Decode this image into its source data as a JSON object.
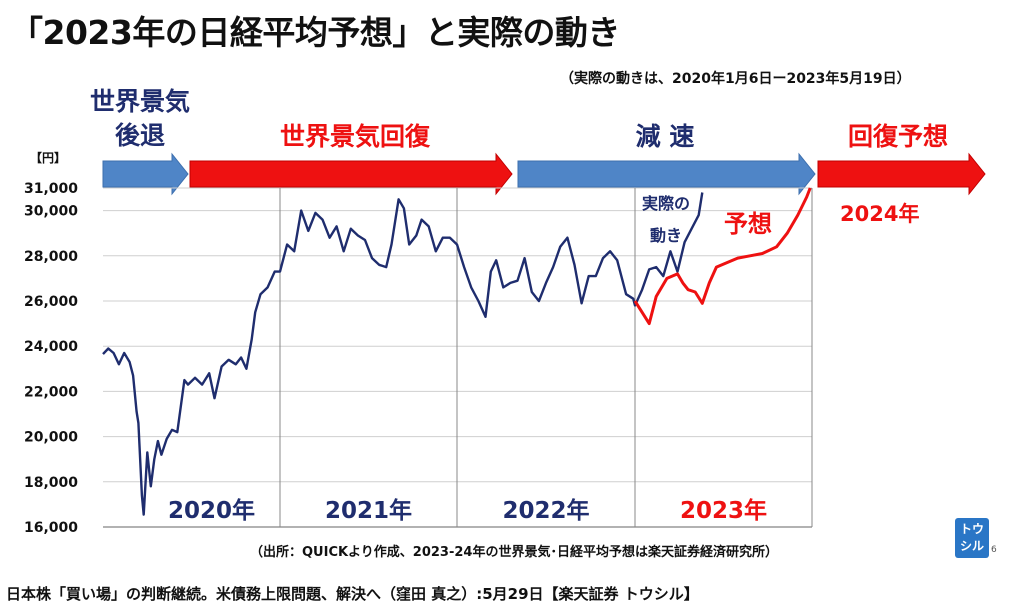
{
  "title": "「2023年の日経平均予想」と実際の動き",
  "period_note": "（実際の動きは、2020年1月6日ー2023年5月19日）",
  "footer": "日本株「買い場」の判断継続。米債務上限問題、解決へ（窪田 真之）:5月29日【楽天証券 トウシル】",
  "logo_text": "トウシル",
  "page_number": "6",
  "colors": {
    "actual": "#1f2d6e",
    "forecast": "#ee1111",
    "phase_blue": "#4f85c7",
    "phase_red": "#ee1111",
    "text": "#111111"
  },
  "chart_data": {
    "type": "line",
    "y_unit": "【円】",
    "ylim": [
      16000,
      31000
    ],
    "y_ticks": [
      "16,000",
      "18,000",
      "20,000",
      "22,000",
      "24,000",
      "26,000",
      "28,000",
      "30,000",
      "31,000"
    ],
    "y_tick_values": [
      16000,
      18000,
      20000,
      22000,
      24000,
      26000,
      28000,
      30000,
      31000
    ],
    "grid": true,
    "years": [
      {
        "label": "2020年",
        "color": "#1f2d6e"
      },
      {
        "label": "2021年",
        "color": "#1f2d6e"
      },
      {
        "label": "2022年",
        "color": "#1f2d6e"
      },
      {
        "label": "2023年",
        "color": "#ee1111"
      }
    ],
    "phases": [
      {
        "label": "世界景気\n後退",
        "color": "#4f85c7",
        "text_color": "#1f2d6e"
      },
      {
        "label": "世界景気回復",
        "color": "#ee1111",
        "text_color": "#ee1111"
      },
      {
        "label": "減 速",
        "color": "#4f85c7",
        "text_color": "#1f2d6e"
      },
      {
        "label": "回復予想",
        "color": "#ee1111",
        "text_color": "#ee1111"
      }
    ],
    "forecast_year_label": "2024年",
    "series": [
      {
        "name": "実際の動き",
        "color": "#1f2d6e",
        "points": [
          [
            2020.0,
            23650
          ],
          [
            2020.03,
            23900
          ],
          [
            2020.06,
            23700
          ],
          [
            2020.09,
            23200
          ],
          [
            2020.12,
            23700
          ],
          [
            2020.15,
            23300
          ],
          [
            2020.17,
            22700
          ],
          [
            2020.19,
            21100
          ],
          [
            2020.2,
            20600
          ],
          [
            2020.22,
            17400
          ],
          [
            2020.23,
            16550
          ],
          [
            2020.25,
            19300
          ],
          [
            2020.27,
            17800
          ],
          [
            2020.29,
            19000
          ],
          [
            2020.31,
            19800
          ],
          [
            2020.33,
            19200
          ],
          [
            2020.36,
            19900
          ],
          [
            2020.39,
            20300
          ],
          [
            2020.42,
            20200
          ],
          [
            2020.46,
            22500
          ],
          [
            2020.48,
            22300
          ],
          [
            2020.52,
            22600
          ],
          [
            2020.56,
            22300
          ],
          [
            2020.6,
            22800
          ],
          [
            2020.63,
            21700
          ],
          [
            2020.67,
            23100
          ],
          [
            2020.71,
            23400
          ],
          [
            2020.75,
            23200
          ],
          [
            2020.78,
            23500
          ],
          [
            2020.81,
            23000
          ],
          [
            2020.84,
            24300
          ],
          [
            2020.86,
            25500
          ],
          [
            2020.89,
            26300
          ],
          [
            2020.93,
            26600
          ],
          [
            2020.97,
            27300
          ],
          [
            2021.0,
            27300
          ],
          [
            2021.04,
            28500
          ],
          [
            2021.08,
            28200
          ],
          [
            2021.12,
            30000
          ],
          [
            2021.16,
            29100
          ],
          [
            2021.2,
            29900
          ],
          [
            2021.24,
            29600
          ],
          [
            2021.28,
            28800
          ],
          [
            2021.32,
            29300
          ],
          [
            2021.36,
            28200
          ],
          [
            2021.4,
            29200
          ],
          [
            2021.44,
            28900
          ],
          [
            2021.48,
            28700
          ],
          [
            2021.52,
            27900
          ],
          [
            2021.56,
            27600
          ],
          [
            2021.6,
            27500
          ],
          [
            2021.63,
            28500
          ],
          [
            2021.67,
            30500
          ],
          [
            2021.7,
            30100
          ],
          [
            2021.73,
            28500
          ],
          [
            2021.77,
            28900
          ],
          [
            2021.8,
            29600
          ],
          [
            2021.84,
            29300
          ],
          [
            2021.88,
            28200
          ],
          [
            2021.92,
            28800
          ],
          [
            2021.96,
            28800
          ],
          [
            2022.0,
            28500
          ],
          [
            2022.04,
            27500
          ],
          [
            2022.08,
            26600
          ],
          [
            2022.12,
            26000
          ],
          [
            2022.16,
            25300
          ],
          [
            2022.19,
            27300
          ],
          [
            2022.22,
            27800
          ],
          [
            2022.26,
            26600
          ],
          [
            2022.3,
            26800
          ],
          [
            2022.34,
            26900
          ],
          [
            2022.38,
            27900
          ],
          [
            2022.42,
            26400
          ],
          [
            2022.46,
            26000
          ],
          [
            2022.5,
            26800
          ],
          [
            2022.54,
            27500
          ],
          [
            2022.58,
            28400
          ],
          [
            2022.62,
            28800
          ],
          [
            2022.66,
            27600
          ],
          [
            2022.7,
            25900
          ],
          [
            2022.74,
            27100
          ],
          [
            2022.78,
            27100
          ],
          [
            2022.82,
            27900
          ],
          [
            2022.86,
            28200
          ],
          [
            2022.9,
            27800
          ],
          [
            2022.95,
            26300
          ],
          [
            2022.99,
            26100
          ],
          [
            2023.0,
            25800
          ],
          [
            2023.04,
            26500
          ],
          [
            2023.08,
            27400
          ],
          [
            2023.12,
            27500
          ],
          [
            2023.16,
            27100
          ],
          [
            2023.2,
            28200
          ],
          [
            2023.24,
            27300
          ],
          [
            2023.28,
            28600
          ],
          [
            2023.32,
            29200
          ],
          [
            2023.36,
            29800
          ],
          [
            2023.38,
            30800
          ]
        ]
      },
      {
        "name": "予想",
        "color": "#ee1111",
        "points": [
          [
            2023.0,
            26000
          ],
          [
            2023.04,
            25500
          ],
          [
            2023.08,
            25000
          ],
          [
            2023.12,
            26200
          ],
          [
            2023.18,
            27000
          ],
          [
            2023.24,
            27200
          ],
          [
            2023.27,
            26800
          ],
          [
            2023.3,
            26500
          ],
          [
            2023.34,
            26400
          ],
          [
            2023.38,
            25900
          ],
          [
            2023.42,
            26800
          ],
          [
            2023.46,
            27500
          ],
          [
            2023.52,
            27700
          ],
          [
            2023.58,
            27900
          ],
          [
            2023.65,
            28000
          ],
          [
            2023.72,
            28100
          ],
          [
            2023.8,
            28400
          ],
          [
            2023.86,
            29000
          ],
          [
            2023.92,
            29800
          ],
          [
            2023.97,
            30600
          ],
          [
            2023.99,
            31000
          ]
        ]
      }
    ]
  },
  "source_note": "（出所：QUICKより作成、2023-24年の世界景気･日経平均予想は楽天証券経済研究所）"
}
